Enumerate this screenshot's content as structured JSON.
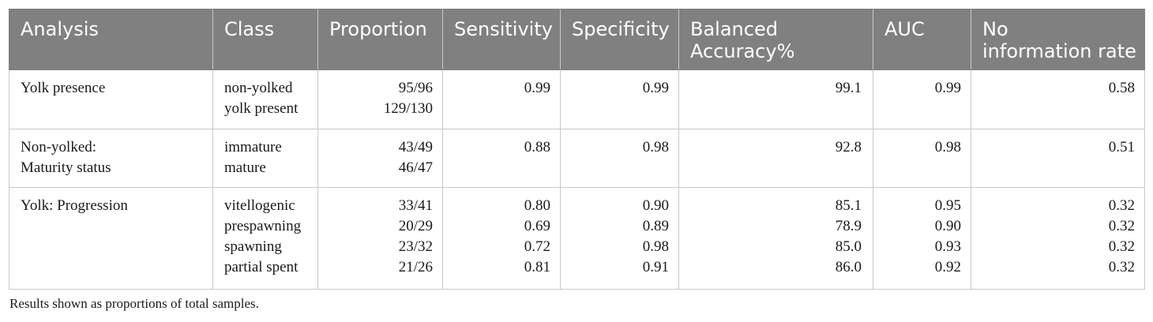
{
  "table": {
    "headers": [
      {
        "lines": [
          "Analysis"
        ]
      },
      {
        "lines": [
          "Class"
        ]
      },
      {
        "lines": [
          "Proportion"
        ]
      },
      {
        "lines": [
          "Sensitivity"
        ]
      },
      {
        "lines": [
          "Specificity"
        ]
      },
      {
        "lines": [
          "Balanced",
          "Accuracy%"
        ]
      },
      {
        "lines": [
          "AUC"
        ]
      },
      {
        "lines": [
          "No",
          "information rate"
        ]
      }
    ],
    "rows": [
      {
        "analysis": [
          "Yolk presence"
        ],
        "classes": [
          "non-yolked",
          "yolk present"
        ],
        "proportion": [
          "95/96",
          "129/130"
        ],
        "sensitivity": [
          "0.99"
        ],
        "specificity": [
          "0.99"
        ],
        "balanced_accuracy": [
          "99.1"
        ],
        "auc": [
          "0.99"
        ],
        "no_information_rate": [
          "0.58"
        ]
      },
      {
        "analysis": [
          "Non-yolked:",
          "Maturity status"
        ],
        "classes": [
          "immature",
          "mature"
        ],
        "proportion": [
          "43/49",
          "46/47"
        ],
        "sensitivity": [
          "0.88"
        ],
        "specificity": [
          "0.98"
        ],
        "balanced_accuracy": [
          "92.8"
        ],
        "auc": [
          "0.98"
        ],
        "no_information_rate": [
          "0.51"
        ]
      },
      {
        "analysis": [
          "Yolk: Progression"
        ],
        "classes": [
          "vitellogenic",
          "prespawning",
          "spawning",
          "partial spent"
        ],
        "proportion": [
          "33/41",
          "20/29",
          "23/32",
          "21/26"
        ],
        "sensitivity": [
          "0.80",
          "0.69",
          "0.72",
          "0.81"
        ],
        "specificity": [
          "0.90",
          "0.89",
          "0.98",
          "0.91"
        ],
        "balanced_accuracy": [
          "85.1",
          "78.9",
          "85.0",
          "86.0"
        ],
        "auc": [
          "0.95",
          "0.90",
          "0.93",
          "0.92"
        ],
        "no_information_rate": [
          "0.32",
          "0.32",
          "0.32",
          "0.32"
        ]
      }
    ]
  },
  "footnote": "Results shown as proportions of total samples."
}
